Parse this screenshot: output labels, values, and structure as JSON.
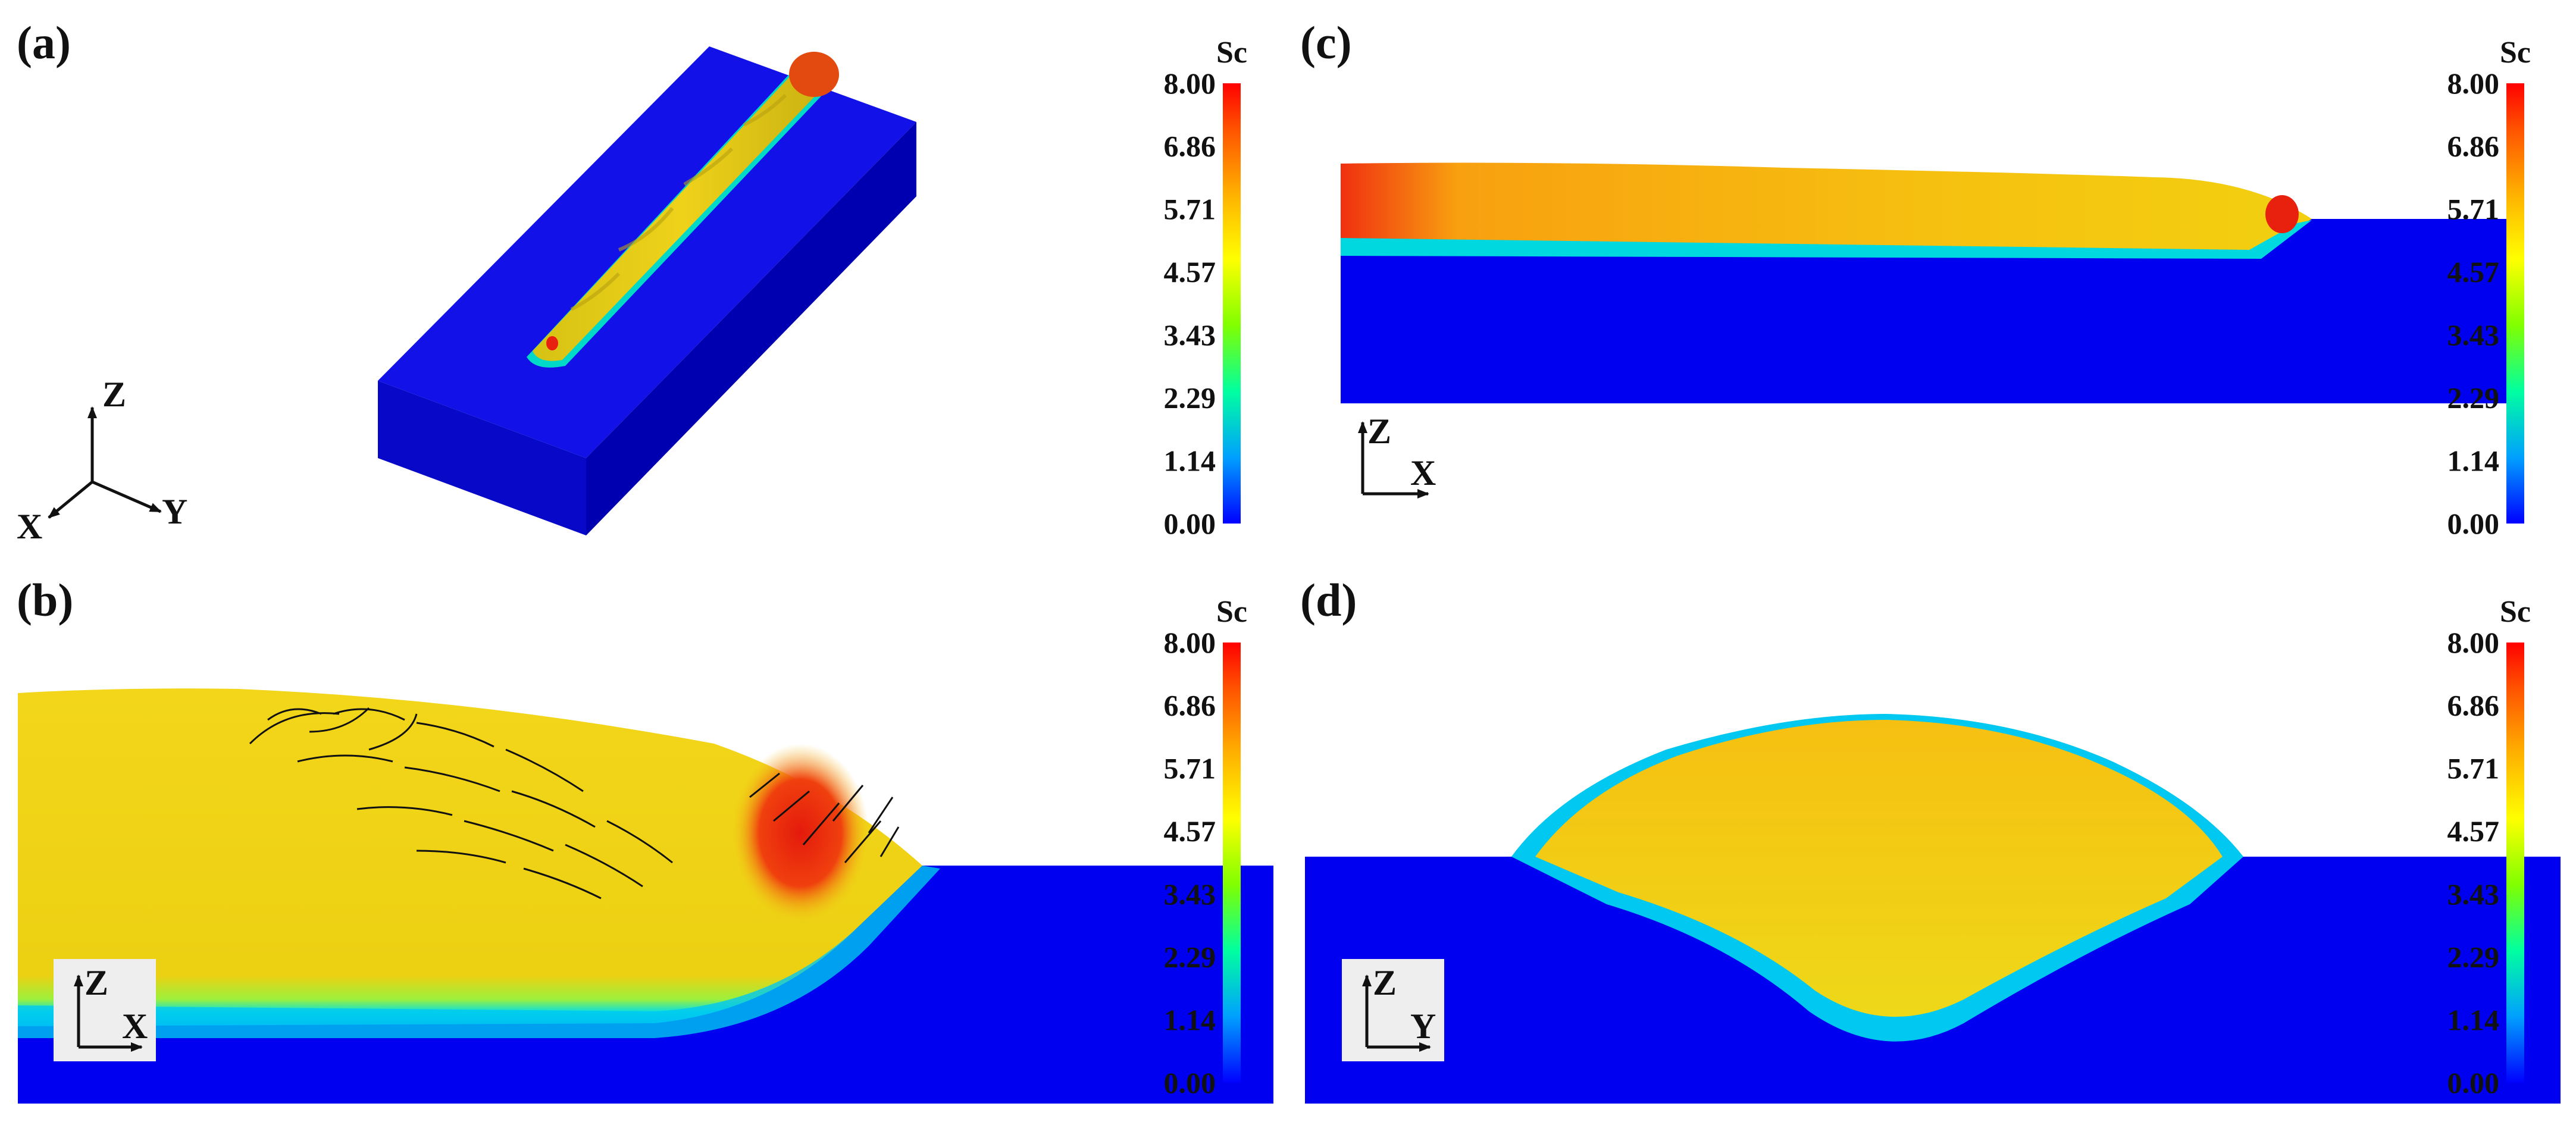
{
  "figure": {
    "panels": [
      {
        "id": "a",
        "label": "(a)"
      },
      {
        "id": "b",
        "label": "(b)"
      },
      {
        "id": "c",
        "label": "(c)"
      },
      {
        "id": "d",
        "label": "(d)"
      }
    ],
    "colorbar": {
      "title": "Sc",
      "ticks": [
        "8.00",
        "6.86",
        "5.71",
        "4.57",
        "3.43",
        "2.29",
        "1.14",
        "0.00"
      ],
      "min": 0.0,
      "max": 8.0,
      "colormap": [
        "#0000ff",
        "#00b8ff",
        "#00ff66",
        "#b8ff00",
        "#ffff00",
        "#ffc000",
        "#ff6a00",
        "#ff0000"
      ]
    },
    "axes_triads": {
      "a": {
        "z": "Z",
        "x": "X",
        "y": "Y"
      },
      "b": {
        "z": "Z",
        "h": "X"
      },
      "c": {
        "z": "Z",
        "h": "X"
      },
      "d": {
        "z": "Z",
        "h": "Y"
      }
    },
    "colors": {
      "substrate": "#0000f0",
      "bead": "#f2cf10",
      "hot": "#e8200e",
      "interface": "#00e8e0"
    }
  }
}
